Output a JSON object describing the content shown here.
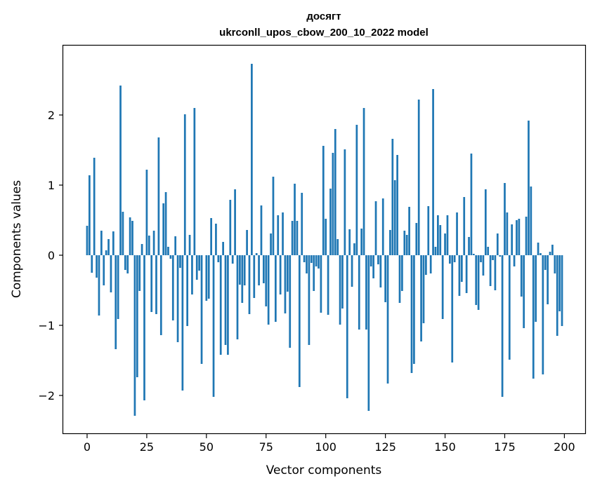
{
  "chart_data": {
    "type": "bar",
    "title": "досягт",
    "subtitle": "ukrconll_upos_cbow_200_10_2022 model",
    "xlabel": "Vector components",
    "ylabel": "Components values",
    "xlim": [
      -10,
      209
    ],
    "ylim": [
      -2.55,
      2.99
    ],
    "xticks": [
      0,
      25,
      50,
      75,
      100,
      125,
      150,
      175,
      200
    ],
    "yticks": [
      -2,
      -1,
      0,
      1,
      2
    ],
    "xtick_labels": [
      "0",
      "25",
      "50",
      "75",
      "100",
      "125",
      "150",
      "175",
      "200"
    ],
    "ytick_labels": [
      "−2",
      "−1",
      "0",
      "1",
      "2"
    ],
    "bar_color": "#1f77b4",
    "grid": false,
    "values": [
      0.42,
      1.14,
      -0.25,
      1.39,
      -0.32,
      -0.86,
      0.35,
      -0.43,
      0.07,
      0.23,
      -0.53,
      0.34,
      -1.34,
      -0.91,
      2.42,
      0.62,
      -0.21,
      -0.26,
      0.54,
      0.49,
      -2.29,
      -1.74,
      -0.51,
      0.16,
      -2.07,
      1.22,
      0.28,
      -0.81,
      0.35,
      -0.84,
      1.68,
      -1.14,
      0.74,
      0.9,
      0.12,
      -0.05,
      -0.93,
      0.27,
      -1.24,
      -0.18,
      -1.93,
      2.01,
      -1.01,
      0.29,
      -0.56,
      2.1,
      -0.35,
      -0.22,
      -1.55,
      0.0,
      -0.65,
      -0.62,
      0.53,
      -2.02,
      0.45,
      -0.1,
      -1.42,
      0.19,
      -1.28,
      -1.42,
      0.79,
      -0.12,
      0.94,
      -1.2,
      -0.42,
      -0.68,
      -0.43,
      0.36,
      -0.84,
      2.73,
      -0.61,
      0.03,
      -0.43,
      0.71,
      -0.4,
      -0.73,
      -0.99,
      0.31,
      1.12,
      -0.95,
      0.57,
      -0.56,
      0.61,
      -0.83,
      -0.52,
      -1.32,
      0.49,
      1.02,
      0.49,
      -1.88,
      0.89,
      -0.1,
      -0.26,
      -1.28,
      -0.11,
      -0.51,
      -0.16,
      -0.19,
      -0.82,
      1.56,
      0.52,
      -0.85,
      0.95,
      1.46,
      1.8,
      0.23,
      -0.99,
      -0.76,
      1.51,
      -2.04,
      0.37,
      -0.45,
      0.17,
      1.86,
      -1.06,
      0.38,
      2.1,
      -1.06,
      -2.22,
      -0.16,
      -0.33,
      0.77,
      -0.13,
      -0.46,
      0.81,
      -0.67,
      -1.83,
      0.36,
      1.66,
      1.07,
      1.43,
      -0.68,
      -0.51,
      0.35,
      0.29,
      0.69,
      -1.68,
      -1.55,
      0.46,
      2.22,
      -1.23,
      -0.97,
      -0.28,
      0.7,
      -0.26,
      2.37,
      0.12,
      0.57,
      0.43,
      -0.91,
      0.31,
      0.57,
      -0.12,
      -1.53,
      -0.1,
      0.61,
      -0.58,
      -0.38,
      0.83,
      -0.54,
      0.26,
      1.45,
      0.02,
      -0.71,
      -0.78,
      -0.1,
      -0.29,
      0.94,
      0.12,
      -0.44,
      -0.07,
      -0.5,
      0.31,
      -0.02,
      -2.02,
      1.03,
      0.61,
      -1.49,
      0.44,
      -0.16,
      0.5,
      0.52,
      -0.59,
      -1.04,
      0.55,
      1.92,
      0.98,
      -1.76,
      -0.95,
      0.18,
      0.03,
      -1.7,
      -0.21,
      -0.7,
      0.05,
      0.15,
      -0.26,
      -1.15,
      -0.8,
      -1.01
    ]
  }
}
